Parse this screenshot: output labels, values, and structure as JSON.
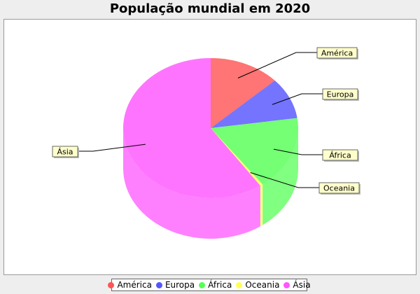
{
  "chart_data": {
    "type": "pie",
    "title": "População mundial em 2020",
    "categories": [
      "América",
      "Europa",
      "África",
      "Oceania",
      "Ásia"
    ],
    "values": [
      13.1,
      9.6,
      17.2,
      0.5,
      59.6
    ],
    "colors": [
      "#ff5555",
      "#5555ff",
      "#55ff55",
      "#ffff55",
      "#ff55ff"
    ],
    "legend_position": "bottom",
    "three_d": true
  }
}
